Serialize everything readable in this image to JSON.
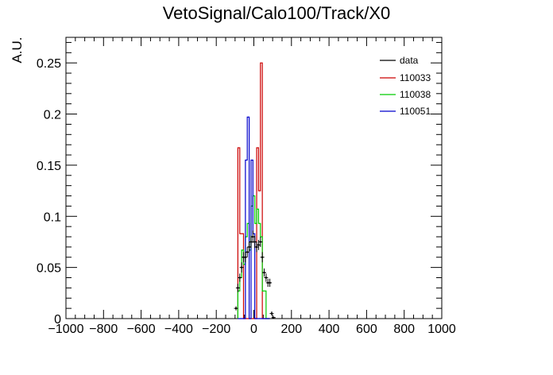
{
  "chart_data": {
    "type": "histogram",
    "title": "VetoSignal/Calo100/Track/X0",
    "xlabel": "",
    "ylabel": "A.U.",
    "xlim": [
      -1000,
      1000
    ],
    "ylim": [
      0,
      0.275
    ],
    "x_ticks": [
      -1000,
      -800,
      -600,
      -400,
      -200,
      0,
      200,
      400,
      600,
      800,
      1000
    ],
    "x_tick_labels": [
      "−1000",
      "−800",
      "−600",
      "−400",
      "−200",
      "0",
      "200",
      "400",
      "600",
      "800",
      "1000"
    ],
    "y_ticks": [
      0,
      0.05,
      0.1,
      0.15,
      0.2,
      0.25
    ],
    "y_tick_labels": [
      "0",
      "0.05",
      "0.1",
      "0.15",
      "0.2",
      "0.25"
    ],
    "legend_position": "top-right",
    "series": [
      {
        "name": "data",
        "color": "#000000",
        "style": "points",
        "x": [
          -95,
          -85,
          -75,
          -65,
          -55,
          -45,
          -35,
          -25,
          -15,
          -5,
          5,
          15,
          25,
          35,
          45,
          55,
          65,
          75,
          85,
          95,
          105
        ],
        "values": [
          0.01,
          0.03,
          0.04,
          0.05,
          0.06,
          0.06,
          0.065,
          0.07,
          0.075,
          0.08,
          0.075,
          0.07,
          0.072,
          0.075,
          0.06,
          0.045,
          0.04,
          0.035,
          0.035,
          0.005,
          0.001
        ],
        "errors": [
          0.002,
          0.004,
          0.004,
          0.005,
          0.005,
          0.005,
          0.005,
          0.005,
          0.006,
          0.006,
          0.006,
          0.005,
          0.005,
          0.005,
          0.005,
          0.004,
          0.004,
          0.004,
          0.004,
          0.002,
          0.001
        ]
      },
      {
        "name": "110033",
        "color": "#cc0000",
        "style": "step",
        "x": [
          -80,
          -70,
          -60,
          -50,
          -40,
          -30,
          -20,
          -10,
          0,
          10,
          20,
          30,
          40,
          50,
          60,
          70,
          80
        ],
        "values": [
          0.167,
          0.083,
          0.083,
          0.0,
          0.0,
          0.0,
          0.0,
          0.0,
          0.0,
          0.0,
          0.167,
          0.125,
          0.25,
          0.0,
          0.0,
          0.0,
          0.0
        ]
      },
      {
        "name": "110038",
        "color": "#00cc00",
        "style": "step",
        "x": [
          -80,
          -70,
          -60,
          -50,
          -40,
          -30,
          -20,
          -10,
          0,
          10,
          20,
          30,
          40,
          50,
          60,
          70,
          80
        ],
        "values": [
          0.027,
          0.04,
          0.067,
          0.053,
          0.08,
          0.093,
          0.067,
          0.11,
          0.12,
          0.093,
          0.107,
          0.093,
          0.08,
          0.027,
          0.027,
          0.0,
          0.0
        ]
      },
      {
        "name": "110051",
        "color": "#0000cc",
        "style": "step",
        "x": [
          -80,
          -70,
          -60,
          -50,
          -40,
          -30,
          -20,
          -10,
          0,
          10,
          20,
          30,
          40,
          50,
          60,
          70,
          80
        ],
        "values": [
          0.0,
          0.0,
          0.0,
          0.0,
          0.155,
          0.197,
          0.0,
          0.155,
          0.083,
          0.0,
          0.0,
          0.0,
          0.0,
          0.0,
          0.0,
          0.0,
          0.0
        ]
      }
    ]
  }
}
